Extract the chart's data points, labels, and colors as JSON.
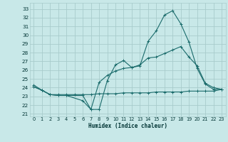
{
  "xlabel": "Humidex (Indice chaleur)",
  "bg_color": "#c8e8e8",
  "grid_color": "#a8cccc",
  "line_color": "#1a6b6b",
  "xlim": [
    -0.5,
    23.5
  ],
  "ylim": [
    20.7,
    33.7
  ],
  "xticks": [
    0,
    1,
    2,
    3,
    4,
    5,
    6,
    7,
    8,
    9,
    10,
    11,
    12,
    13,
    14,
    15,
    16,
    17,
    18,
    19,
    20,
    21,
    22,
    23
  ],
  "yticks": [
    21,
    22,
    23,
    24,
    25,
    26,
    27,
    28,
    29,
    30,
    31,
    32,
    33
  ],
  "line1_x": [
    0,
    1,
    2,
    3,
    4,
    6,
    7,
    8,
    9,
    10,
    11,
    12,
    13,
    14,
    15,
    16,
    17,
    18,
    19,
    20,
    21,
    22,
    23
  ],
  "line1_y": [
    24.3,
    23.7,
    23.2,
    23.1,
    23.1,
    22.5,
    21.5,
    21.5,
    24.8,
    26.6,
    27.1,
    26.3,
    26.5,
    29.3,
    30.5,
    32.3,
    32.8,
    31.3,
    29.2,
    26.2,
    24.4,
    23.8,
    23.8
  ],
  "line2_x": [
    0,
    1,
    2,
    3,
    4,
    5,
    6,
    7,
    8,
    9,
    10,
    11,
    12,
    13,
    14,
    15,
    16,
    17,
    18,
    19,
    20,
    21,
    22,
    23
  ],
  "line2_y": [
    24.1,
    23.7,
    23.2,
    23.2,
    23.2,
    23.2,
    23.2,
    23.2,
    23.3,
    23.3,
    23.3,
    23.4,
    23.4,
    23.4,
    23.4,
    23.5,
    23.5,
    23.5,
    23.5,
    23.6,
    23.6,
    23.6,
    23.6,
    23.8
  ],
  "line3_x": [
    0,
    1,
    2,
    3,
    4,
    6,
    7,
    8,
    9,
    10,
    11,
    12,
    13,
    14,
    15,
    16,
    17,
    18,
    19,
    20,
    21,
    22,
    23
  ],
  "line3_y": [
    24.1,
    23.7,
    23.2,
    23.1,
    23.1,
    23.1,
    21.5,
    24.6,
    25.4,
    25.9,
    26.2,
    26.3,
    26.6,
    27.4,
    27.5,
    27.9,
    28.3,
    28.7,
    27.5,
    26.5,
    24.5,
    24.0,
    23.8
  ]
}
